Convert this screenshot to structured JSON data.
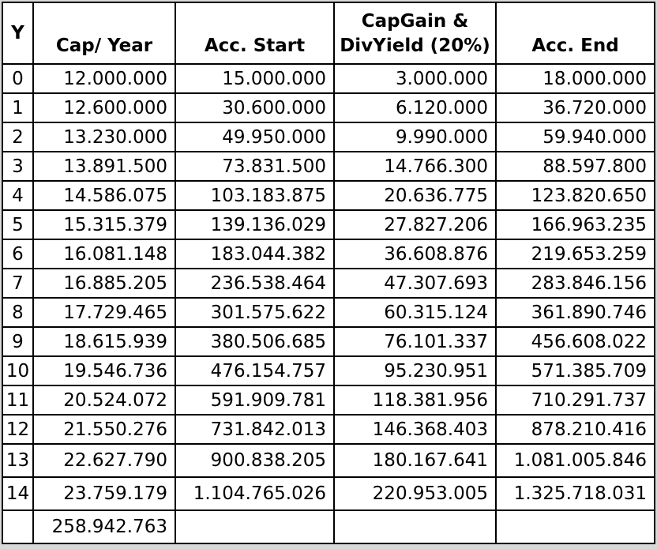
{
  "chart_data": {
    "type": "table",
    "columns": [
      "Y",
      "Cap/ Year",
      "Acc. Start",
      "CapGain & DivYield (20%)",
      "Acc. End"
    ],
    "column_header_display": [
      "Y",
      "Cap/ Year",
      "Acc. Start",
      "CapGain &\nDivYield (20%)",
      "Acc. End"
    ],
    "rows": [
      [
        "0",
        "12.000.000",
        "15.000.000",
        "3.000.000",
        "18.000.000"
      ],
      [
        "1",
        "12.600.000",
        "30.600.000",
        "6.120.000",
        "36.720.000"
      ],
      [
        "2",
        "13.230.000",
        "49.950.000",
        "9.990.000",
        "59.940.000"
      ],
      [
        "3",
        "13.891.500",
        "73.831.500",
        "14.766.300",
        "88.597.800"
      ],
      [
        "4",
        "14.586.075",
        "103.183.875",
        "20.636.775",
        "123.820.650"
      ],
      [
        "5",
        "15.315.379",
        "139.136.029",
        "27.827.206",
        "166.963.235"
      ],
      [
        "6",
        "16.081.148",
        "183.044.382",
        "36.608.876",
        "219.653.259"
      ],
      [
        "7",
        "16.885.205",
        "236.538.464",
        "47.307.693",
        "283.846.156"
      ],
      [
        "8",
        "17.729.465",
        "301.575.622",
        "60.315.124",
        "361.890.746"
      ],
      [
        "9",
        "18.615.939",
        "380.506.685",
        "76.101.337",
        "456.608.022"
      ],
      [
        "10",
        "19.546.736",
        "476.154.757",
        "95.230.951",
        "571.385.709"
      ],
      [
        "11",
        "20.524.072",
        "591.909.781",
        "118.381.956",
        "710.291.737"
      ],
      [
        "12",
        "21.550.276",
        "731.842.013",
        "146.368.403",
        "878.210.416"
      ],
      [
        "13",
        "22.627.790",
        "900.838.205",
        "180.167.641",
        "1.081.005.846"
      ],
      [
        "14",
        "23.759.179",
        "1.104.765.026",
        "220.953.005",
        "1.325.718.031"
      ]
    ],
    "total_row": [
      "",
      "258.942.763",
      "",
      "",
      ""
    ]
  },
  "colors": {
    "border": "#000000",
    "cell_background": "#ffffff",
    "page_background": "#d9d9d9",
    "text": "#000000"
  }
}
